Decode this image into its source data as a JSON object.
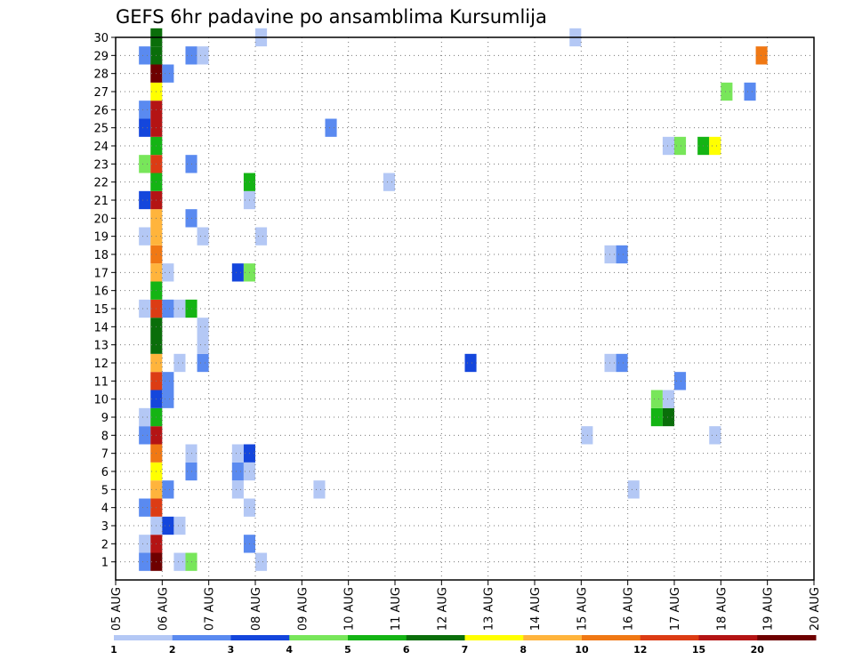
{
  "chart_data": {
    "type": "heatmap",
    "title": "GEFS 6hr padavine po ansamblima Kursumlija",
    "y_ticks": [
      1,
      2,
      3,
      4,
      5,
      6,
      7,
      8,
      9,
      10,
      11,
      12,
      13,
      14,
      15,
      16,
      17,
      18,
      19,
      20,
      21,
      22,
      23,
      24,
      25,
      26,
      27,
      28,
      29,
      30
    ],
    "ylim": [
      0,
      30
    ],
    "x_ticks": [
      "05 AUG",
      "06 AUG",
      "07 AUG",
      "08 AUG",
      "09 AUG",
      "10 AUG",
      "11 AUG",
      "12 AUG",
      "13 AUG",
      "14 AUG",
      "15 AUG",
      "16 AUG",
      "17 AUG",
      "18 AUG",
      "19 AUG",
      "20 AUG"
    ],
    "xlim_days": [
      0,
      15
    ],
    "grid": true,
    "colorbar": {
      "ticks": [
        "1",
        "2",
        "3",
        "4",
        "5",
        "6",
        "7",
        "8",
        "10",
        "12",
        "15",
        "20"
      ],
      "colors": [
        "#b4c8f5",
        "#5a8af0",
        "#1446dc",
        "#78e65a",
        "#14b414",
        "#0a6e0a",
        "#ffff00",
        "#ffb43c",
        "#f07814",
        "#dc3c14",
        "#b41414",
        "#6e0000"
      ]
    },
    "cells": [
      {
        "x": 0.625,
        "y": 1,
        "v": "#5a8af0"
      },
      {
        "x": 0.875,
        "y": 1,
        "v": "#6e0000"
      },
      {
        "x": 1.375,
        "y": 1,
        "v": "#b4c8f5"
      },
      {
        "x": 1.625,
        "y": 1,
        "v": "#78e65a"
      },
      {
        "x": 3.125,
        "y": 1,
        "v": "#b4c8f5"
      },
      {
        "x": 0.625,
        "y": 2,
        "v": "#b4c8f5"
      },
      {
        "x": 0.875,
        "y": 2,
        "v": "#b41414"
      },
      {
        "x": 2.875,
        "y": 2,
        "v": "#5a8af0"
      },
      {
        "x": 0.875,
        "y": 3,
        "v": "#b4c8f5"
      },
      {
        "x": 1.125,
        "y": 3,
        "v": "#1446dc"
      },
      {
        "x": 1.375,
        "y": 3,
        "v": "#b4c8f5"
      },
      {
        "x": 0.625,
        "y": 4,
        "v": "#5a8af0"
      },
      {
        "x": 0.875,
        "y": 4,
        "v": "#dc3c14"
      },
      {
        "x": 2.875,
        "y": 4,
        "v": "#b4c8f5"
      },
      {
        "x": 0.875,
        "y": 5,
        "v": "#ffb43c"
      },
      {
        "x": 1.125,
        "y": 5,
        "v": "#5a8af0"
      },
      {
        "x": 2.625,
        "y": 5,
        "v": "#b4c8f5"
      },
      {
        "x": 4.375,
        "y": 5,
        "v": "#b4c8f5"
      },
      {
        "x": 11.125,
        "y": 5,
        "v": "#b4c8f5"
      },
      {
        "x": 0.875,
        "y": 6,
        "v": "#ffff00"
      },
      {
        "x": 1.625,
        "y": 6,
        "v": "#5a8af0"
      },
      {
        "x": 2.625,
        "y": 6,
        "v": "#5a8af0"
      },
      {
        "x": 2.875,
        "y": 6,
        "v": "#b4c8f5"
      },
      {
        "x": 0.875,
        "y": 7,
        "v": "#f07814"
      },
      {
        "x": 1.625,
        "y": 7,
        "v": "#b4c8f5"
      },
      {
        "x": 2.625,
        "y": 7,
        "v": "#b4c8f5"
      },
      {
        "x": 2.875,
        "y": 7,
        "v": "#1446dc"
      },
      {
        "x": 0.625,
        "y": 8,
        "v": "#5a8af0"
      },
      {
        "x": 0.875,
        "y": 8,
        "v": "#b41414"
      },
      {
        "x": 10.125,
        "y": 8,
        "v": "#b4c8f5"
      },
      {
        "x": 12.875,
        "y": 8,
        "v": "#b4c8f5"
      },
      {
        "x": 0.625,
        "y": 9,
        "v": "#b4c8f5"
      },
      {
        "x": 0.875,
        "y": 9,
        "v": "#14b414"
      },
      {
        "x": 11.625,
        "y": 9,
        "v": "#14b414"
      },
      {
        "x": 11.875,
        "y": 9,
        "v": "#0a6e0a"
      },
      {
        "x": 0.875,
        "y": 10,
        "v": "#1446dc"
      },
      {
        "x": 1.125,
        "y": 10,
        "v": "#5a8af0"
      },
      {
        "x": 11.625,
        "y": 10,
        "v": "#78e65a"
      },
      {
        "x": 11.875,
        "y": 10,
        "v": "#b4c8f5"
      },
      {
        "x": 0.875,
        "y": 11,
        "v": "#dc3c14"
      },
      {
        "x": 1.125,
        "y": 11,
        "v": "#5a8af0"
      },
      {
        "x": 12.125,
        "y": 11,
        "v": "#5a8af0"
      },
      {
        "x": 0.875,
        "y": 12,
        "v": "#ffb43c"
      },
      {
        "x": 1.375,
        "y": 12,
        "v": "#b4c8f5"
      },
      {
        "x": 1.875,
        "y": 12,
        "v": "#5a8af0"
      },
      {
        "x": 7.625,
        "y": 12,
        "v": "#1446dc"
      },
      {
        "x": 10.625,
        "y": 12,
        "v": "#b4c8f5"
      },
      {
        "x": 10.875,
        "y": 12,
        "v": "#5a8af0"
      },
      {
        "x": 0.875,
        "y": 13,
        "v": "#0a6e0a"
      },
      {
        "x": 1.875,
        "y": 13,
        "v": "#b4c8f5"
      },
      {
        "x": 0.875,
        "y": 14,
        "v": "#0a6e0a"
      },
      {
        "x": 1.875,
        "y": 14,
        "v": "#b4c8f5"
      },
      {
        "x": 0.625,
        "y": 15,
        "v": "#b4c8f5"
      },
      {
        "x": 0.875,
        "y": 15,
        "v": "#dc3c14"
      },
      {
        "x": 1.125,
        "y": 15,
        "v": "#5a8af0"
      },
      {
        "x": 1.375,
        "y": 15,
        "v": "#b4c8f5"
      },
      {
        "x": 1.625,
        "y": 15,
        "v": "#14b414"
      },
      {
        "x": 0.875,
        "y": 16,
        "v": "#14b414"
      },
      {
        "x": 0.875,
        "y": 17,
        "v": "#ffb43c"
      },
      {
        "x": 1.125,
        "y": 17,
        "v": "#b4c8f5"
      },
      {
        "x": 2.625,
        "y": 17,
        "v": "#1446dc"
      },
      {
        "x": 2.875,
        "y": 17,
        "v": "#78e65a"
      },
      {
        "x": 0.875,
        "y": 18,
        "v": "#f07814"
      },
      {
        "x": 10.625,
        "y": 18,
        "v": "#b4c8f5"
      },
      {
        "x": 10.875,
        "y": 18,
        "v": "#5a8af0"
      },
      {
        "x": 0.625,
        "y": 19,
        "v": "#b4c8f5"
      },
      {
        "x": 0.875,
        "y": 19,
        "v": "#ffb43c"
      },
      {
        "x": 1.875,
        "y": 19,
        "v": "#b4c8f5"
      },
      {
        "x": 3.125,
        "y": 19,
        "v": "#b4c8f5"
      },
      {
        "x": 0.875,
        "y": 20,
        "v": "#ffb43c"
      },
      {
        "x": 1.625,
        "y": 20,
        "v": "#5a8af0"
      },
      {
        "x": 0.625,
        "y": 21,
        "v": "#1446dc"
      },
      {
        "x": 0.875,
        "y": 21,
        "v": "#b41414"
      },
      {
        "x": 2.875,
        "y": 21,
        "v": "#b4c8f5"
      },
      {
        "x": 0.875,
        "y": 22,
        "v": "#14b414"
      },
      {
        "x": 2.875,
        "y": 22,
        "v": "#14b414"
      },
      {
        "x": 5.875,
        "y": 22,
        "v": "#b4c8f5"
      },
      {
        "x": 0.625,
        "y": 23,
        "v": "#78e65a"
      },
      {
        "x": 0.875,
        "y": 23,
        "v": "#dc3c14"
      },
      {
        "x": 1.625,
        "y": 23,
        "v": "#5a8af0"
      },
      {
        "x": 0.875,
        "y": 24,
        "v": "#14b414"
      },
      {
        "x": 11.875,
        "y": 24,
        "v": "#b4c8f5"
      },
      {
        "x": 12.125,
        "y": 24,
        "v": "#78e65a"
      },
      {
        "x": 12.625,
        "y": 24,
        "v": "#14b414"
      },
      {
        "x": 12.875,
        "y": 24,
        "v": "#ffff00"
      },
      {
        "x": 0.625,
        "y": 25,
        "v": "#1446dc"
      },
      {
        "x": 0.875,
        "y": 25,
        "v": "#b41414"
      },
      {
        "x": 4.625,
        "y": 25,
        "v": "#5a8af0"
      },
      {
        "x": 0.625,
        "y": 26,
        "v": "#5a8af0"
      },
      {
        "x": 0.875,
        "y": 26,
        "v": "#b41414"
      },
      {
        "x": 0.875,
        "y": 27,
        "v": "#ffff00"
      },
      {
        "x": 13.125,
        "y": 27,
        "v": "#78e65a"
      },
      {
        "x": 13.625,
        "y": 27,
        "v": "#5a8af0"
      },
      {
        "x": 0.875,
        "y": 28,
        "v": "#6e0000"
      },
      {
        "x": 1.125,
        "y": 28,
        "v": "#5a8af0"
      },
      {
        "x": 0.625,
        "y": 29,
        "v": "#5a8af0"
      },
      {
        "x": 0.875,
        "y": 29,
        "v": "#0a6e0a"
      },
      {
        "x": 1.625,
        "y": 29,
        "v": "#5a8af0"
      },
      {
        "x": 1.875,
        "y": 29,
        "v": "#b4c8f5"
      },
      {
        "x": 13.875,
        "y": 29,
        "v": "#f07814"
      },
      {
        "x": 0.875,
        "y": 30,
        "v": "#0a6e0a"
      },
      {
        "x": 3.125,
        "y": 30,
        "v": "#b4c8f5"
      },
      {
        "x": 9.875,
        "y": 30,
        "v": "#b4c8f5"
      }
    ]
  }
}
